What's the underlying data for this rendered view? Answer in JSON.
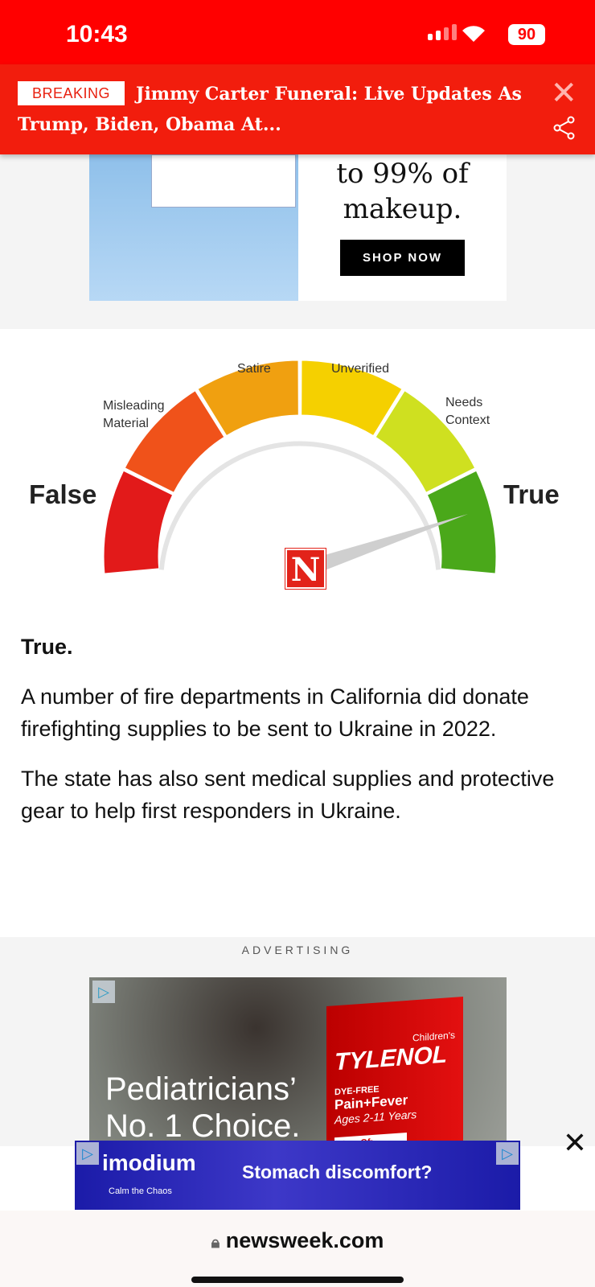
{
  "status": {
    "time": "10:43",
    "battery": "90"
  },
  "breaking": {
    "badge": "BREAKING",
    "headline": "Jimmy Carter Funeral: Live Updates As Trump, Biden, Obama At..."
  },
  "top_ad": {
    "text": "to 99% of makeup.",
    "cta": "SHOP NOW"
  },
  "gauge": {
    "left_label": "False",
    "right_label": "True",
    "labels": [
      "Misleading Material",
      "Satire",
      "Unverified",
      "Needs Context"
    ],
    "logo": "N",
    "rating": "True",
    "colors": [
      "#e21a1a",
      "#f0521a",
      "#f0a010",
      "#f5d000",
      "#cfe020",
      "#4aa81a"
    ]
  },
  "article": {
    "verdict": "True.",
    "paragraphs": [
      "A number of fire departments in California did donate firefighting supplies to be sent to Ukraine in 2022.",
      "The state has also sent medical supplies and protective gear to help first responders in Ukraine."
    ]
  },
  "ad": {
    "label": "ADVERTISING",
    "headline": "Pediatricians’ No. 1 Choice.",
    "brand": "TYLENOL",
    "brand_sub": "Children's",
    "line1": "DYE-FREE",
    "line2": "Pain+Fever",
    "line3": "Ages 2-11 Years",
    "line4": "Free Of:"
  },
  "bottom_ad": {
    "brand": "imodium",
    "tagline": "Calm the Chaos",
    "text": "Stomach discomfort?"
  },
  "browser": {
    "url": "newsweek.com"
  }
}
